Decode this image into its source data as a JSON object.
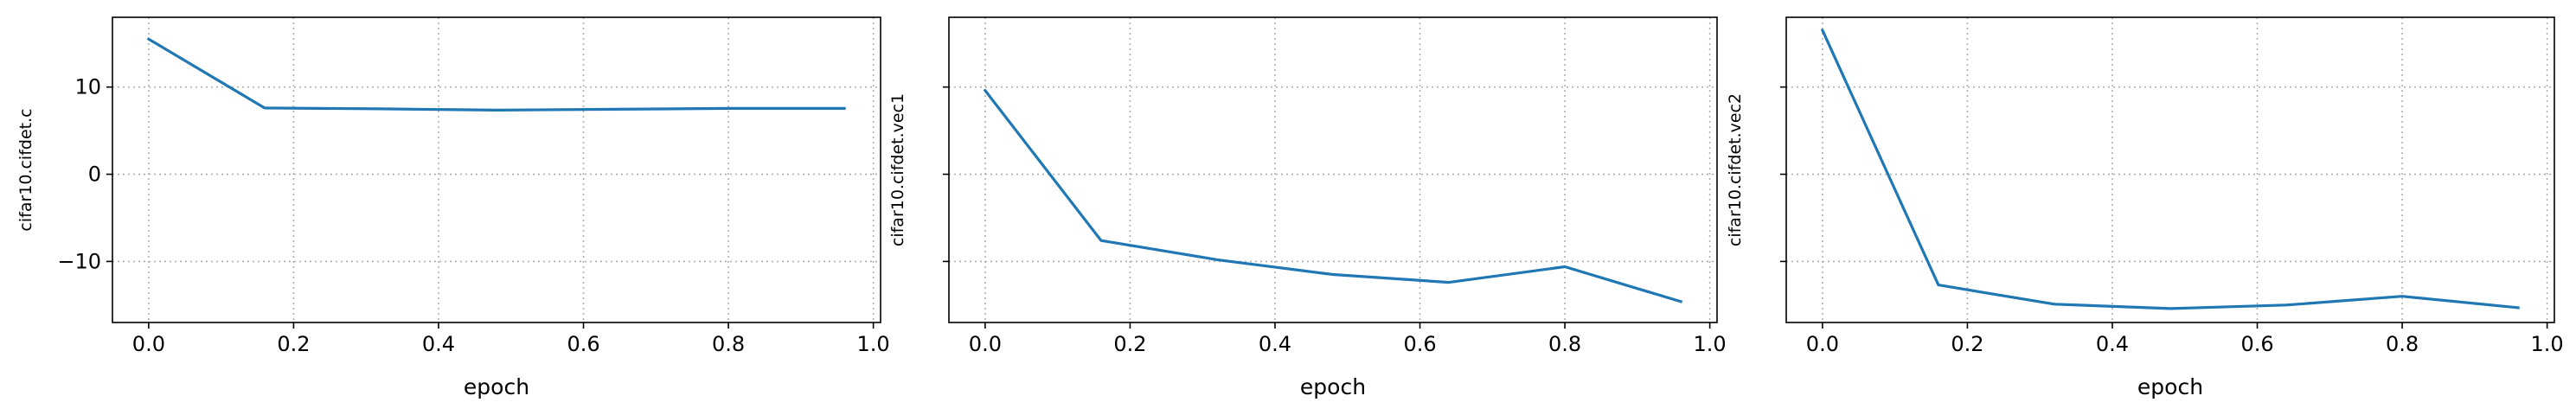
{
  "figure": {
    "series_color": "#1f77b4",
    "grid_color": "#b0b0b0"
  },
  "chart_data": [
    {
      "type": "line",
      "xlabel": "epoch",
      "ylabel": "cifar10.cifdet.c",
      "xlim": [
        -0.05,
        1.01
      ],
      "ylim": [
        -17,
        18
      ],
      "xticks": [
        0.0,
        0.2,
        0.4,
        0.6,
        0.8,
        1.0
      ],
      "xtick_labels": [
        "0.0",
        "0.2",
        "0.4",
        "0.6",
        "0.8",
        "1.0"
      ],
      "yticks": [
        -10,
        0,
        10
      ],
      "ytick_labels": [
        "−10",
        "0",
        "10"
      ],
      "grid": true,
      "series": [
        {
          "x": [
            0.0,
            0.16,
            0.32,
            0.48,
            0.64,
            0.8,
            0.96
          ],
          "y": [
            15.5,
            7.6,
            7.5,
            7.35,
            7.45,
            7.55,
            7.55
          ]
        }
      ]
    },
    {
      "type": "line",
      "xlabel": "epoch",
      "ylabel": "cifar10.cifdet.vec1",
      "xlim": [
        -0.05,
        1.01
      ],
      "ylim": [
        -17,
        18
      ],
      "xticks": [
        0.0,
        0.2,
        0.4,
        0.6,
        0.8,
        1.0
      ],
      "xtick_labels": [
        "0.0",
        "0.2",
        "0.4",
        "0.6",
        "0.8",
        "1.0"
      ],
      "yticks": [
        -10,
        0,
        10
      ],
      "ytick_labels": [
        "",
        "",
        ""
      ],
      "grid": true,
      "series": [
        {
          "x": [
            0.0,
            0.16,
            0.32,
            0.48,
            0.64,
            0.8,
            0.96
          ],
          "y": [
            9.6,
            -7.6,
            -9.8,
            -11.5,
            -12.4,
            -10.6,
            -14.6
          ]
        }
      ]
    },
    {
      "type": "line",
      "xlabel": "epoch",
      "ylabel": "cifar10.cifdet.vec2",
      "xlim": [
        -0.05,
        1.01
      ],
      "ylim": [
        -17,
        18
      ],
      "xticks": [
        0.0,
        0.2,
        0.4,
        0.6,
        0.8,
        1.0
      ],
      "xtick_labels": [
        "0.0",
        "0.2",
        "0.4",
        "0.6",
        "0.8",
        "1.0"
      ],
      "yticks": [
        -10,
        0,
        10
      ],
      "ytick_labels": [
        "",
        "",
        ""
      ],
      "grid": true,
      "series": [
        {
          "x": [
            0.0,
            0.16,
            0.32,
            0.48,
            0.64,
            0.8,
            0.96
          ],
          "y": [
            16.5,
            -12.7,
            -14.9,
            -15.4,
            -15.0,
            -14.0,
            -15.3
          ]
        }
      ]
    }
  ]
}
